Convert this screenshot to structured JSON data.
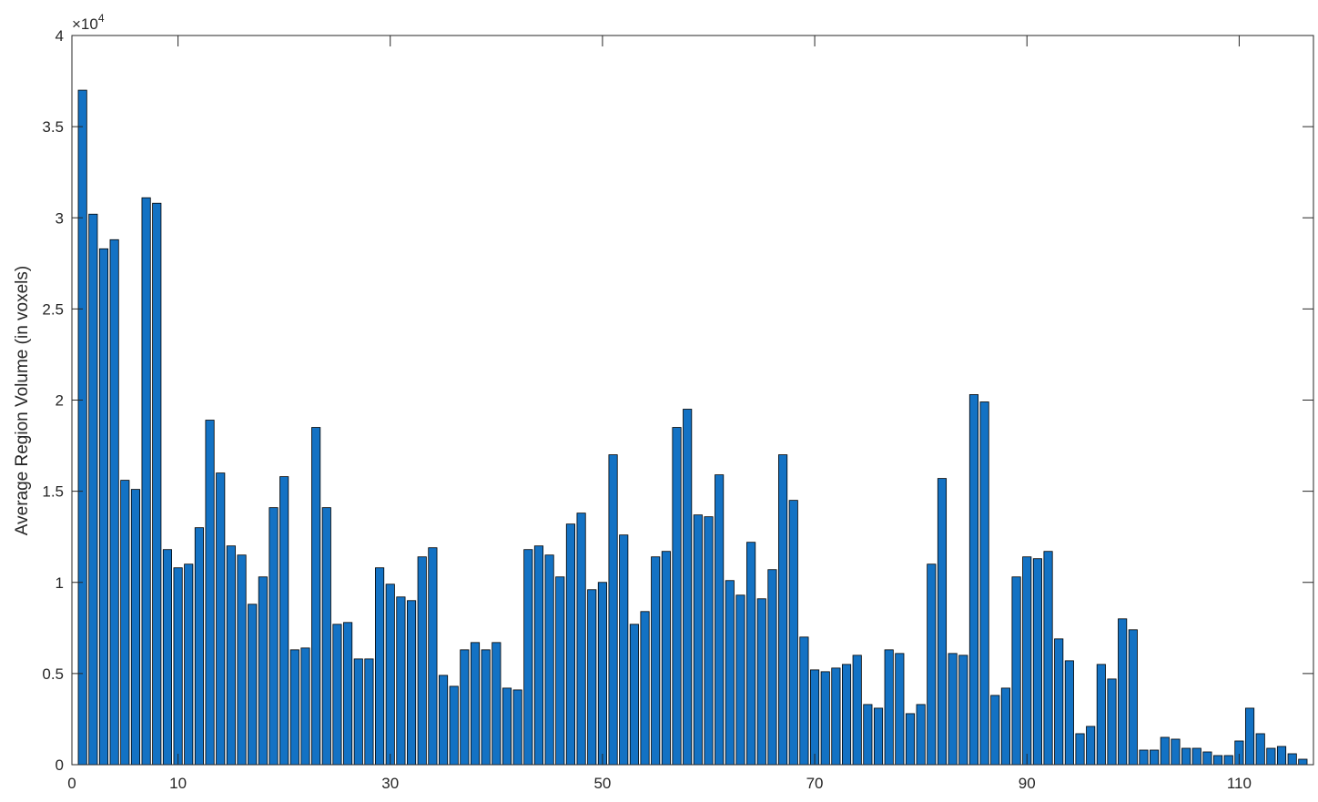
{
  "chart_data": {
    "type": "bar",
    "title": "",
    "xlabel": "",
    "ylabel": "Average Region Volume (in voxels)",
    "y_exponent_label": "×10",
    "y_exponent_power": "4",
    "xlim": [
      0,
      117
    ],
    "ylim": [
      0,
      40000
    ],
    "grid": false,
    "bar_color": "#1372c4",
    "edge_color": "#000000",
    "x_ticks": [
      0,
      10,
      30,
      50,
      70,
      90,
      110
    ],
    "x_tick_labels": [
      "0",
      "10",
      "30",
      "50",
      "70",
      "90",
      "110"
    ],
    "y_ticks": [
      0,
      5000,
      10000,
      15000,
      20000,
      25000,
      30000,
      35000,
      40000
    ],
    "y_tick_labels": [
      "0",
      "0.5",
      "1",
      "1.5",
      "2",
      "2.5",
      "3",
      "3.5",
      "4"
    ],
    "x": [
      1,
      2,
      3,
      4,
      5,
      6,
      7,
      8,
      9,
      10,
      11,
      12,
      13,
      14,
      15,
      16,
      17,
      18,
      19,
      20,
      21,
      22,
      23,
      24,
      25,
      26,
      27,
      28,
      29,
      30,
      31,
      32,
      33,
      34,
      35,
      36,
      37,
      38,
      39,
      40,
      41,
      42,
      43,
      44,
      45,
      46,
      47,
      48,
      49,
      50,
      51,
      52,
      53,
      54,
      55,
      56,
      57,
      58,
      59,
      60,
      61,
      62,
      63,
      64,
      65,
      66,
      67,
      68,
      69,
      70,
      71,
      72,
      73,
      74,
      75,
      76,
      77,
      78,
      79,
      80,
      81,
      82,
      83,
      84,
      85,
      86,
      87,
      88,
      89,
      90,
      91,
      92,
      93,
      94,
      95,
      96,
      97,
      98,
      99,
      100,
      101,
      102,
      103,
      104,
      105,
      106,
      107,
      108,
      109,
      110,
      111,
      112,
      113,
      114,
      115,
      116
    ],
    "values": [
      37000,
      30200,
      28300,
      28800,
      15600,
      15100,
      31100,
      30800,
      11800,
      10800,
      11000,
      13000,
      18900,
      16000,
      12000,
      11500,
      8800,
      10300,
      14100,
      15800,
      6300,
      6400,
      18500,
      14100,
      7700,
      7800,
      5800,
      5800,
      10800,
      9900,
      9200,
      9000,
      11400,
      11900,
      4900,
      4300,
      6300,
      6700,
      6300,
      6700,
      4200,
      4100,
      11800,
      12000,
      11500,
      10300,
      13200,
      13800,
      9600,
      10000,
      17000,
      12600,
      7700,
      8400,
      11400,
      11700,
      18500,
      19500,
      13700,
      13600,
      15900,
      10100,
      9300,
      12200,
      9100,
      10700,
      17000,
      14500,
      7000,
      5200,
      5100,
      5300,
      5500,
      6000,
      3300,
      3100,
      6300,
      6100,
      2800,
      3300,
      11000,
      15700,
      6100,
      6000,
      20300,
      19900,
      3800,
      4200,
      10300,
      11400,
      11300,
      11700,
      6900,
      5700,
      1700,
      2100,
      5500,
      4700,
      8000,
      7400,
      800,
      800,
      1500,
      1400,
      900,
      900,
      700,
      500,
      500,
      1300,
      3100,
      1700,
      900,
      1000,
      600,
      300
    ]
  }
}
